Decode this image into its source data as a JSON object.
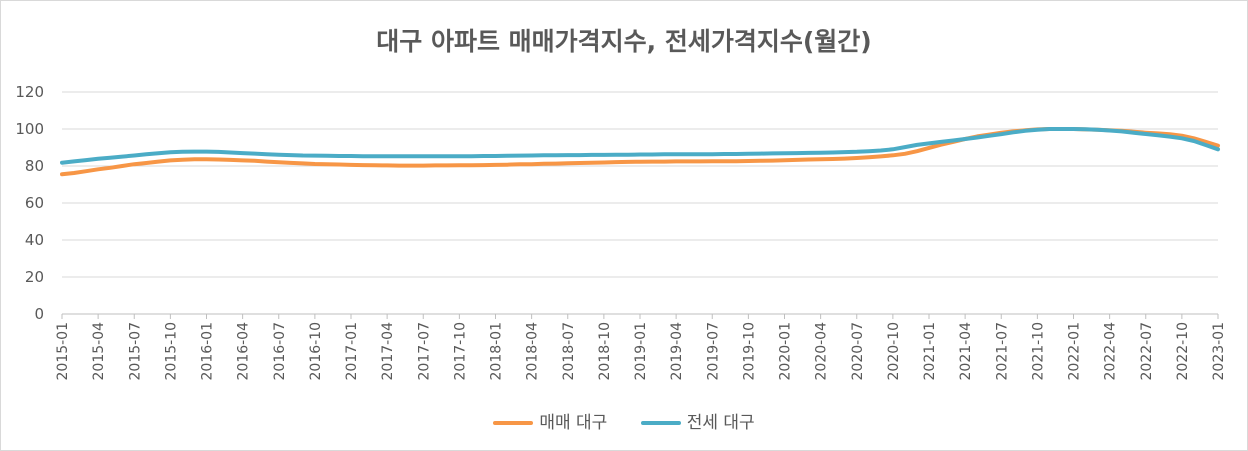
{
  "chart_data": {
    "type": "line",
    "title": "대구 아파트 매매가격지수, 전세가격지수(월간)",
    "xlabel": "",
    "ylabel": "",
    "ylim": [
      0,
      120
    ],
    "yticks": [
      0,
      20,
      40,
      60,
      80,
      100,
      120
    ],
    "grid": true,
    "legend_position": "bottom",
    "x_tick_labels": [
      "2015-01",
      "2015-04",
      "2015-07",
      "2015-10",
      "2016-01",
      "2016-04",
      "2016-07",
      "2016-10",
      "2017-01",
      "2017-04",
      "2017-07",
      "2017-10",
      "2018-01",
      "2018-04",
      "2018-07",
      "2018-10",
      "2019-01",
      "2019-04",
      "2019-07",
      "2019-10",
      "2020-01",
      "2020-04",
      "2020-07",
      "2020-10",
      "2021-01",
      "2021-04",
      "2021-07",
      "2021-10",
      "2022-01",
      "2022-04",
      "2022-07",
      "2022-10",
      "2023-01"
    ],
    "x": [
      "2015-01",
      "2015-02",
      "2015-03",
      "2015-04",
      "2015-05",
      "2015-06",
      "2015-07",
      "2015-08",
      "2015-09",
      "2015-10",
      "2015-11",
      "2015-12",
      "2016-01",
      "2016-02",
      "2016-03",
      "2016-04",
      "2016-05",
      "2016-06",
      "2016-07",
      "2016-08",
      "2016-09",
      "2016-10",
      "2016-11",
      "2016-12",
      "2017-01",
      "2017-02",
      "2017-03",
      "2017-04",
      "2017-05",
      "2017-06",
      "2017-07",
      "2017-08",
      "2017-09",
      "2017-10",
      "2017-11",
      "2017-12",
      "2018-01",
      "2018-02",
      "2018-03",
      "2018-04",
      "2018-05",
      "2018-06",
      "2018-07",
      "2018-08",
      "2018-09",
      "2018-10",
      "2018-11",
      "2018-12",
      "2019-01",
      "2019-02",
      "2019-03",
      "2019-04",
      "2019-05",
      "2019-06",
      "2019-07",
      "2019-08",
      "2019-09",
      "2019-10",
      "2019-11",
      "2019-12",
      "2020-01",
      "2020-02",
      "2020-03",
      "2020-04",
      "2020-05",
      "2020-06",
      "2020-07",
      "2020-08",
      "2020-09",
      "2020-10",
      "2020-11",
      "2020-12",
      "2021-01",
      "2021-02",
      "2021-03",
      "2021-04",
      "2021-05",
      "2021-06",
      "2021-07",
      "2021-08",
      "2021-09",
      "2021-10",
      "2021-11",
      "2021-12",
      "2022-01",
      "2022-02",
      "2022-03",
      "2022-04",
      "2022-05",
      "2022-06",
      "2022-07",
      "2022-08",
      "2022-09",
      "2022-10",
      "2022-11",
      "2022-12",
      "2023-01"
    ],
    "series": [
      {
        "name": "매매 대구",
        "color": "#f79646",
        "values": [
          75.5,
          76.2,
          77.2,
          78.2,
          79.0,
          80.0,
          81.0,
          81.6,
          82.4,
          83.0,
          83.4,
          83.6,
          83.6,
          83.5,
          83.3,
          83.0,
          82.8,
          82.4,
          82.0,
          81.7,
          81.4,
          81.1,
          81.0,
          80.8,
          80.6,
          80.5,
          80.4,
          80.3,
          80.2,
          80.2,
          80.2,
          80.3,
          80.3,
          80.4,
          80.4,
          80.5,
          80.6,
          80.7,
          80.9,
          81.0,
          81.2,
          81.3,
          81.5,
          81.6,
          81.8,
          81.9,
          82.1,
          82.2,
          82.3,
          82.4,
          82.4,
          82.5,
          82.5,
          82.5,
          82.6,
          82.6,
          82.6,
          82.7,
          82.8,
          82.9,
          83.1,
          83.3,
          83.5,
          83.7,
          83.8,
          84.0,
          84.3,
          84.7,
          85.2,
          85.8,
          86.6,
          88.0,
          89.8,
          91.5,
          93.0,
          94.6,
          96.0,
          97.0,
          98.0,
          98.7,
          99.3,
          99.8,
          100.0,
          100.0,
          100.0,
          99.8,
          99.6,
          99.3,
          99.0,
          98.5,
          98.0,
          97.6,
          97.2,
          96.4,
          95.0,
          93.0,
          91.0
        ]
      },
      {
        "name": "전세 대구",
        "color": "#4bacc6",
        "values": [
          81.8,
          82.5,
          83.2,
          83.9,
          84.5,
          85.1,
          85.7,
          86.3,
          86.9,
          87.4,
          87.7,
          87.8,
          87.8,
          87.6,
          87.3,
          87.0,
          86.7,
          86.4,
          86.1,
          85.9,
          85.7,
          85.6,
          85.5,
          85.4,
          85.4,
          85.3,
          85.3,
          85.3,
          85.3,
          85.3,
          85.3,
          85.3,
          85.3,
          85.3,
          85.3,
          85.4,
          85.4,
          85.5,
          85.6,
          85.7,
          85.8,
          85.8,
          85.9,
          85.9,
          86.0,
          86.0,
          86.1,
          86.1,
          86.2,
          86.2,
          86.3,
          86.3,
          86.3,
          86.4,
          86.4,
          86.5,
          86.5,
          86.6,
          86.7,
          86.8,
          86.9,
          87.0,
          87.1,
          87.2,
          87.3,
          87.5,
          87.7,
          88.0,
          88.4,
          89.0,
          90.2,
          91.4,
          92.2,
          93.0,
          93.8,
          94.6,
          95.4,
          96.3,
          97.2,
          98.2,
          99.0,
          99.6,
          100.0,
          100.0,
          100.0,
          99.9,
          99.6,
          99.2,
          98.7,
          98.0,
          97.3,
          96.6,
          95.9,
          95.0,
          93.5,
          91.3,
          89.0
        ]
      }
    ]
  }
}
